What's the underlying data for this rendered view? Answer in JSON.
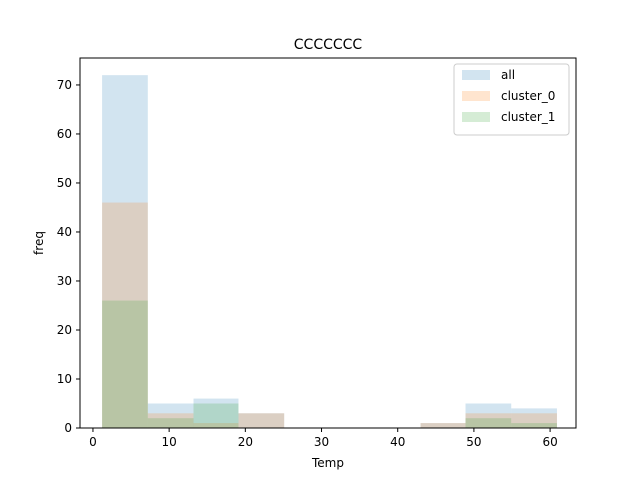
{
  "chart_data": {
    "type": "histogram",
    "title": "CCCCCCC",
    "xlabel": "Temp",
    "ylabel": "freq",
    "xlim": [
      -1.7,
      63.4
    ],
    "ylim": [
      0,
      75.5
    ],
    "xticks": [
      0,
      10,
      20,
      30,
      40,
      50,
      60
    ],
    "yticks": [
      0,
      10,
      20,
      30,
      40,
      50,
      60,
      70
    ],
    "legend_position": "top-right",
    "series": [
      {
        "name": "all",
        "color": "#1f77b4",
        "bins": [
          {
            "x0": 1.2,
            "x1": 7.2,
            "value": 72
          },
          {
            "x0": 7.2,
            "x1": 13.2,
            "value": 5
          },
          {
            "x0": 13.2,
            "x1": 19.1,
            "value": 6
          },
          {
            "x0": 19.1,
            "x1": 25.1,
            "value": 3
          },
          {
            "x0": 25.1,
            "x1": 31.1,
            "value": 0
          },
          {
            "x0": 31.1,
            "x1": 37.0,
            "value": 0
          },
          {
            "x0": 37.0,
            "x1": 43.0,
            "value": 0
          },
          {
            "x0": 43.0,
            "x1": 48.9,
            "value": 1
          },
          {
            "x0": 48.9,
            "x1": 54.9,
            "value": 5
          },
          {
            "x0": 54.9,
            "x1": 60.9,
            "value": 4
          }
        ]
      },
      {
        "name": "cluster_0",
        "color": "#ff7f0e",
        "bins": [
          {
            "x0": 1.2,
            "x1": 7.2,
            "value": 46
          },
          {
            "x0": 7.2,
            "x1": 13.2,
            "value": 3
          },
          {
            "x0": 13.2,
            "x1": 19.1,
            "value": 1
          },
          {
            "x0": 19.1,
            "x1": 25.1,
            "value": 3
          },
          {
            "x0": 25.1,
            "x1": 31.1,
            "value": 0
          },
          {
            "x0": 31.1,
            "x1": 37.0,
            "value": 0
          },
          {
            "x0": 37.0,
            "x1": 43.0,
            "value": 0
          },
          {
            "x0": 43.0,
            "x1": 48.9,
            "value": 1
          },
          {
            "x0": 48.9,
            "x1": 54.9,
            "value": 3
          },
          {
            "x0": 54.9,
            "x1": 60.9,
            "value": 3
          }
        ]
      },
      {
        "name": "cluster_1",
        "color": "#2ca02c",
        "bins": [
          {
            "x0": 1.2,
            "x1": 7.2,
            "value": 26
          },
          {
            "x0": 7.2,
            "x1": 13.2,
            "value": 2
          },
          {
            "x0": 13.2,
            "x1": 19.1,
            "value": 5
          },
          {
            "x0": 19.1,
            "x1": 25.1,
            "value": 0
          },
          {
            "x0": 25.1,
            "x1": 31.1,
            "value": 0
          },
          {
            "x0": 31.1,
            "x1": 37.0,
            "value": 0
          },
          {
            "x0": 37.0,
            "x1": 43.0,
            "value": 0
          },
          {
            "x0": 43.0,
            "x1": 48.9,
            "value": 0
          },
          {
            "x0": 48.9,
            "x1": 54.9,
            "value": 2
          },
          {
            "x0": 54.9,
            "x1": 60.9,
            "value": 1
          }
        ]
      }
    ]
  }
}
